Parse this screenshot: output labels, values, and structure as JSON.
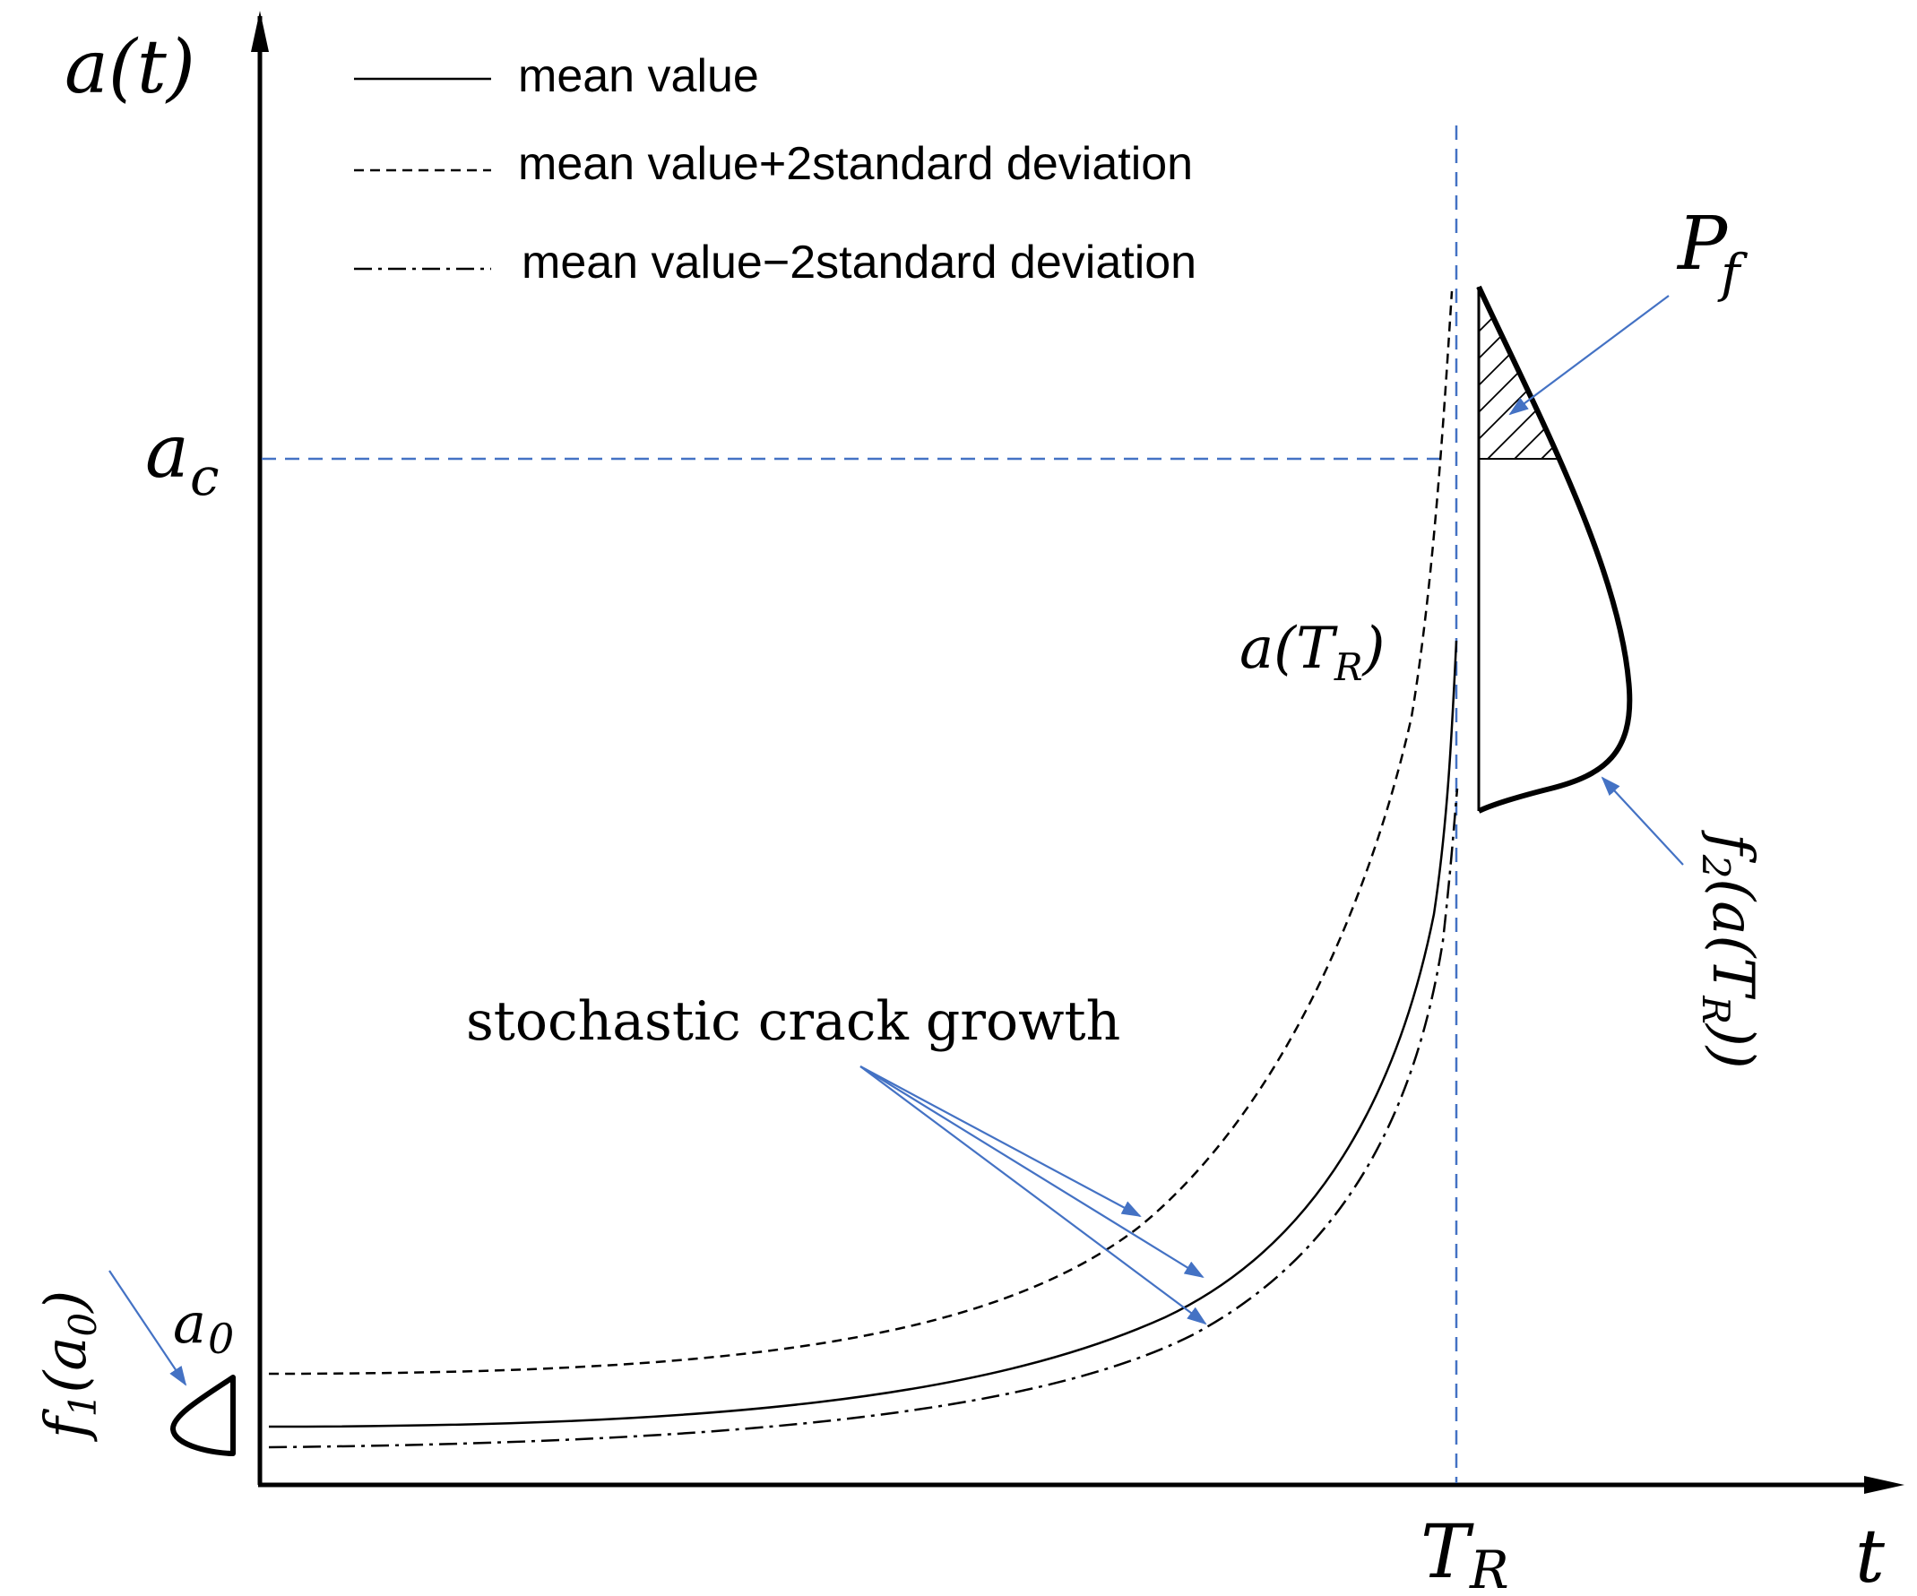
{
  "axes": {
    "y_label": "a(t)",
    "x_label": "t",
    "ac_label": "a",
    "ac_sub": "c",
    "tr_label": "T",
    "tr_sub": "R",
    "a0_label": "a",
    "a0_sub": "0"
  },
  "legend": {
    "mean": "mean value",
    "plus": "mean value+2standard deviation",
    "minus": "mean value−2standard deviation"
  },
  "annotations": {
    "stochastic": "stochastic crack growth",
    "pf_main": "P",
    "pf_sub": "f",
    "atr_main": "a(T",
    "atr_sub": "R",
    "atr_close": ")",
    "f1_main": "f",
    "f1_sub1": "1",
    "f1_mid": "(a",
    "f1_sub2": "0",
    "f1_close": ")",
    "f2_main": "f",
    "f2_sub1": "2",
    "f2_mid": "(a(T",
    "f2_sub2": "R",
    "f2_close": "))"
  },
  "colors": {
    "ink": "#000000",
    "accent": "#4472C4"
  }
}
